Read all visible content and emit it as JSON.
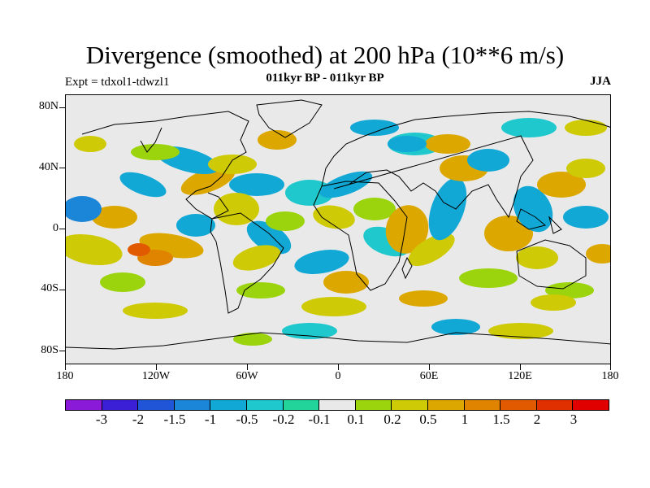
{
  "title": "Divergence (smoothed) at 200 hPa (10**6 m/s)",
  "subtitle": "011kyr BP - 011kyr BP",
  "experiment": "Expt = tdxol1-tdwzl1",
  "season": "JJA",
  "map": {
    "lat_labels": [
      "80N",
      "40N",
      "0",
      "40S",
      "80S"
    ],
    "lon_labels": [
      "180",
      "120W",
      "60W",
      "0",
      "60E",
      "120E",
      "180"
    ],
    "lon_range": [
      -180,
      180
    ],
    "lat_range": [
      -90,
      90
    ]
  },
  "colorbar": {
    "colors": [
      "#8a19d8",
      "#3a1fd6",
      "#1f55d6",
      "#1b86d8",
      "#12a8d6",
      "#1ec8cc",
      "#22d49a",
      "#e9e9e9",
      "#9bd40c",
      "#cfca06",
      "#dca800",
      "#e08400",
      "#e25a00",
      "#e03000",
      "#e00000"
    ],
    "labels": [
      "-3",
      "-2",
      "-1.5",
      "-1",
      "-0.5",
      "-0.2",
      "-0.1",
      "0.1",
      "0.2",
      "0.5",
      "1",
      "1.5",
      "2",
      "3"
    ]
  }
}
